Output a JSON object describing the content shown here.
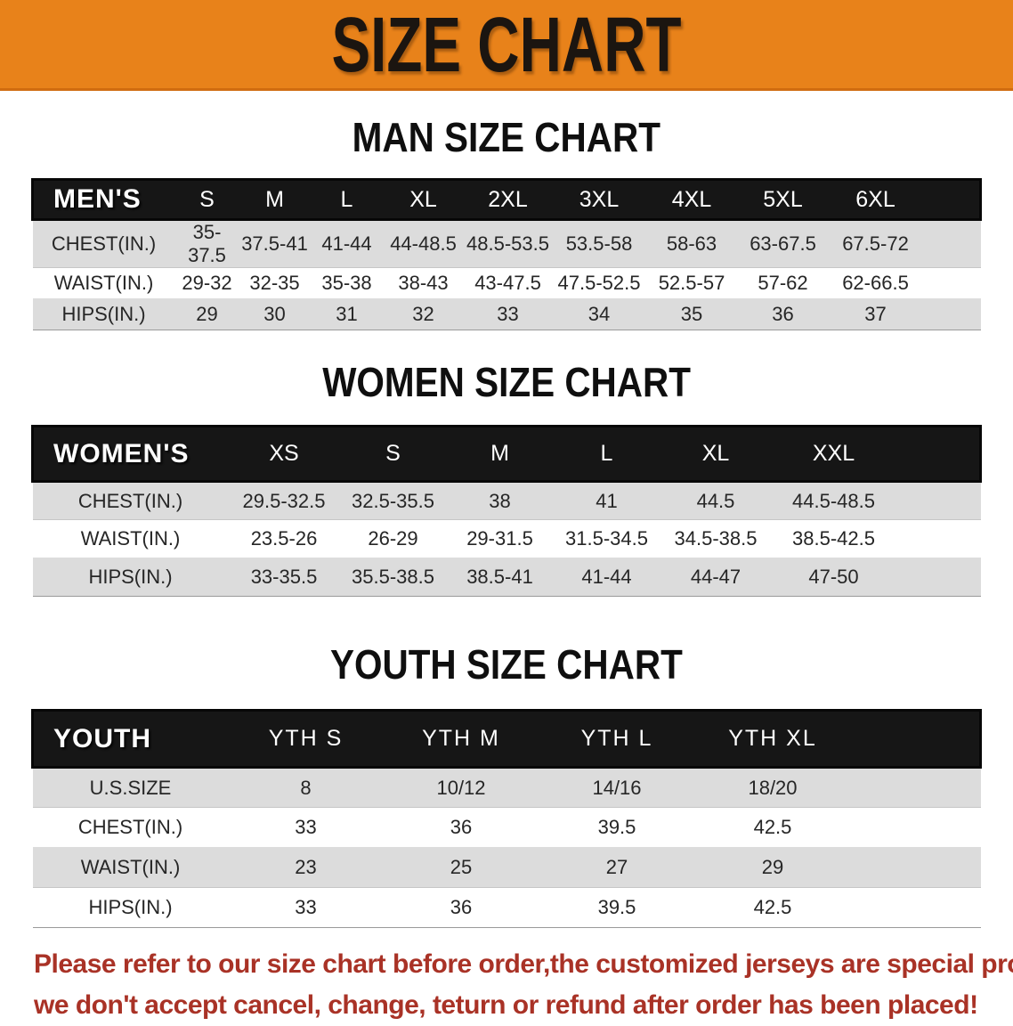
{
  "colors": {
    "banner_bg": "#E8821A",
    "banner_text": "#1b1510",
    "header_bar_bg": "#161616",
    "header_bar_text": "#ffffff",
    "row_shade": "#DCDCDC",
    "row_plain": "#ffffff",
    "body_text": "#222222",
    "disclaimer_text": "#A93226"
  },
  "banner": {
    "title": "SIZE CHART"
  },
  "sections": [
    {
      "id": "men",
      "title": "MAN SIZE CHART",
      "table": {
        "corner_label": "MEN'S",
        "sizes": [
          "S",
          "M",
          "L",
          "XL",
          "2XL",
          "3XL",
          "4XL",
          "5XL",
          "6XL"
        ],
        "rows": [
          {
            "label": "CHEST(IN.)",
            "values": [
              "35-37.5",
              "37.5-41",
              "41-44",
              "44-48.5",
              "48.5-53.5",
              "53.5-58",
              "58-63",
              "63-67.5",
              "67.5-72"
            ]
          },
          {
            "label": "WAIST(IN.)",
            "values": [
              "29-32",
              "32-35",
              "35-38",
              "38-43",
              "43-47.5",
              "47.5-52.5",
              "52.5-57",
              "57-62",
              "62-66.5"
            ]
          },
          {
            "label": "HIPS(IN.)",
            "values": [
              "29",
              "30",
              "31",
              "32",
              "33",
              "34",
              "35",
              "36",
              "37"
            ]
          }
        ]
      }
    },
    {
      "id": "women",
      "title": "WOMEN SIZE CHART",
      "table": {
        "corner_label": "WOMEN'S",
        "sizes": [
          "XS",
          "S",
          "M",
          "L",
          "XL",
          "XXL"
        ],
        "rows": [
          {
            "label": "CHEST(IN.)",
            "values": [
              "29.5-32.5",
              "32.5-35.5",
              "38",
              "41",
              "44.5",
              "44.5-48.5"
            ]
          },
          {
            "label": "WAIST(IN.)",
            "values": [
              "23.5-26",
              "26-29",
              "29-31.5",
              "31.5-34.5",
              "34.5-38.5",
              "38.5-42.5"
            ]
          },
          {
            "label": "HIPS(IN.)",
            "values": [
              "33-35.5",
              "35.5-38.5",
              "38.5-41",
              "41-44",
              "44-47",
              "47-50"
            ]
          }
        ]
      }
    },
    {
      "id": "youth",
      "title": "YOUTH SIZE CHART",
      "table": {
        "corner_label": "YOUTH",
        "sizes": [
          "YTH S",
          "YTH M",
          "YTH L",
          "YTH XL"
        ],
        "rows": [
          {
            "label": "U.S.SIZE",
            "values": [
              "8",
              "10/12",
              "14/16",
              "18/20"
            ]
          },
          {
            "label": "CHEST(IN.)",
            "values": [
              "33",
              "36",
              "39.5",
              "42.5"
            ]
          },
          {
            "label": "WAIST(IN.)",
            "values": [
              "23",
              "25",
              "27",
              "29"
            ]
          },
          {
            "label": "HIPS(IN.)",
            "values": [
              "33",
              "36",
              "39.5",
              "42.5"
            ]
          }
        ]
      }
    }
  ],
  "disclaimer": {
    "lines": [
      "Please refer to our size chart before order,the customized jerseys are special products,",
      "we don't accept cancel, change, teturn or refund after order has been placed!"
    ]
  }
}
